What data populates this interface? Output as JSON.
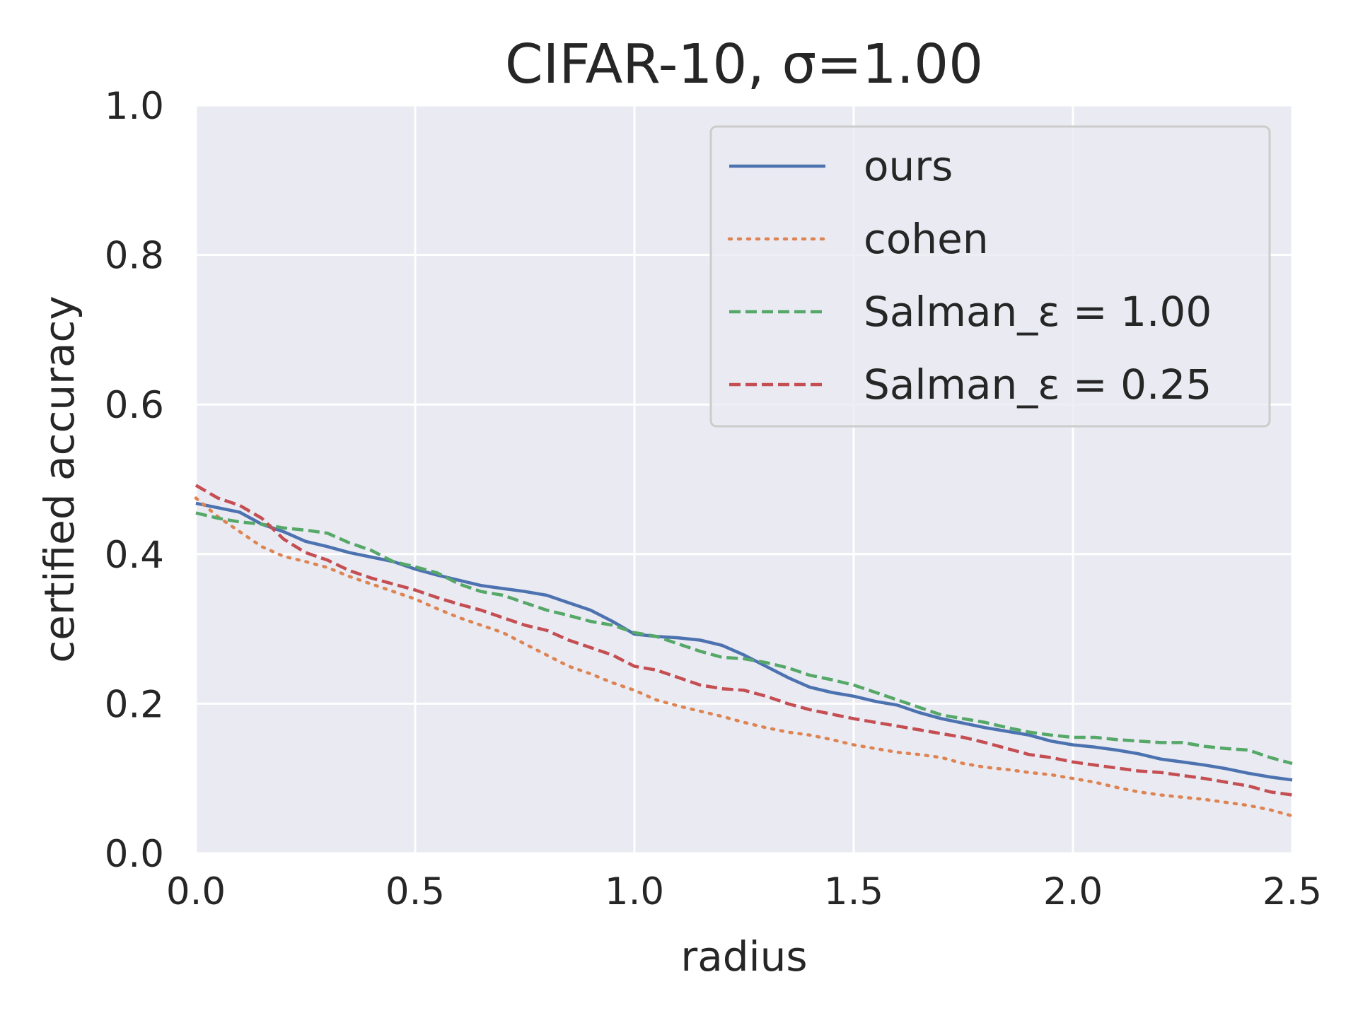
{
  "chart_data": {
    "type": "line",
    "title": "CIFAR-10, σ=1.00",
    "xlabel": "radius",
    "ylabel": "certified accuracy",
    "xlim": [
      0.0,
      2.5
    ],
    "ylim": [
      0.0,
      1.0
    ],
    "xticks": [
      "0.0",
      "0.5",
      "1.0",
      "1.5",
      "2.0",
      "2.5"
    ],
    "yticks": [
      "0.0",
      "0.2",
      "0.4",
      "0.6",
      "0.8",
      "1.0"
    ],
    "grid": true,
    "legend_position": "top-right",
    "x": [
      0.0,
      0.05,
      0.1,
      0.15,
      0.2,
      0.25,
      0.3,
      0.35,
      0.4,
      0.45,
      0.5,
      0.55,
      0.6,
      0.65,
      0.7,
      0.75,
      0.8,
      0.85,
      0.9,
      0.95,
      1.0,
      1.05,
      1.1,
      1.15,
      1.2,
      1.25,
      1.3,
      1.35,
      1.4,
      1.45,
      1.5,
      1.55,
      1.6,
      1.65,
      1.7,
      1.75,
      1.8,
      1.85,
      1.9,
      1.95,
      2.0,
      2.05,
      2.1,
      2.15,
      2.2,
      2.25,
      2.3,
      2.35,
      2.4,
      2.45,
      2.5
    ],
    "series": [
      {
        "name": "ours",
        "color": "#4c72b0",
        "style": "solid",
        "values": [
          0.468,
          0.462,
          0.456,
          0.44,
          0.43,
          0.417,
          0.41,
          0.402,
          0.396,
          0.39,
          0.38,
          0.372,
          0.365,
          0.358,
          0.354,
          0.35,
          0.345,
          0.335,
          0.325,
          0.31,
          0.293,
          0.29,
          0.288,
          0.285,
          0.278,
          0.265,
          0.25,
          0.235,
          0.222,
          0.215,
          0.21,
          0.203,
          0.198,
          0.188,
          0.18,
          0.174,
          0.168,
          0.163,
          0.158,
          0.15,
          0.145,
          0.142,
          0.138,
          0.133,
          0.126,
          0.122,
          0.118,
          0.113,
          0.107,
          0.102,
          0.098
        ]
      },
      {
        "name": "cohen",
        "color": "#dd8452",
        "style": "dotted",
        "values": [
          0.475,
          0.45,
          0.43,
          0.41,
          0.397,
          0.39,
          0.382,
          0.37,
          0.36,
          0.35,
          0.34,
          0.327,
          0.315,
          0.305,
          0.295,
          0.28,
          0.265,
          0.25,
          0.24,
          0.228,
          0.218,
          0.205,
          0.197,
          0.19,
          0.183,
          0.175,
          0.168,
          0.162,
          0.158,
          0.152,
          0.145,
          0.14,
          0.135,
          0.132,
          0.128,
          0.12,
          0.115,
          0.112,
          0.108,
          0.105,
          0.1,
          0.095,
          0.088,
          0.082,
          0.078,
          0.075,
          0.072,
          0.068,
          0.064,
          0.058,
          0.05
        ]
      },
      {
        "name": "Salman_ε = 1.00",
        "color": "#55a868",
        "style": "dashed",
        "values": [
          0.455,
          0.448,
          0.443,
          0.44,
          0.435,
          0.432,
          0.428,
          0.415,
          0.405,
          0.39,
          0.383,
          0.375,
          0.36,
          0.35,
          0.345,
          0.335,
          0.325,
          0.318,
          0.31,
          0.305,
          0.295,
          0.29,
          0.28,
          0.27,
          0.262,
          0.26,
          0.255,
          0.248,
          0.238,
          0.232,
          0.225,
          0.215,
          0.205,
          0.195,
          0.185,
          0.18,
          0.175,
          0.168,
          0.162,
          0.158,
          0.155,
          0.155,
          0.152,
          0.15,
          0.148,
          0.148,
          0.143,
          0.14,
          0.138,
          0.128,
          0.12
        ]
      },
      {
        "name": "Salman_ε = 0.25",
        "color": "#c44e52",
        "style": "dashed",
        "values": [
          0.492,
          0.475,
          0.465,
          0.448,
          0.42,
          0.402,
          0.392,
          0.378,
          0.368,
          0.36,
          0.352,
          0.342,
          0.333,
          0.325,
          0.315,
          0.305,
          0.298,
          0.285,
          0.275,
          0.265,
          0.25,
          0.245,
          0.235,
          0.225,
          0.22,
          0.218,
          0.21,
          0.2,
          0.192,
          0.186,
          0.18,
          0.175,
          0.17,
          0.165,
          0.16,
          0.155,
          0.148,
          0.14,
          0.132,
          0.128,
          0.122,
          0.118,
          0.114,
          0.11,
          0.108,
          0.104,
          0.1,
          0.095,
          0.09,
          0.082,
          0.078
        ]
      }
    ]
  }
}
